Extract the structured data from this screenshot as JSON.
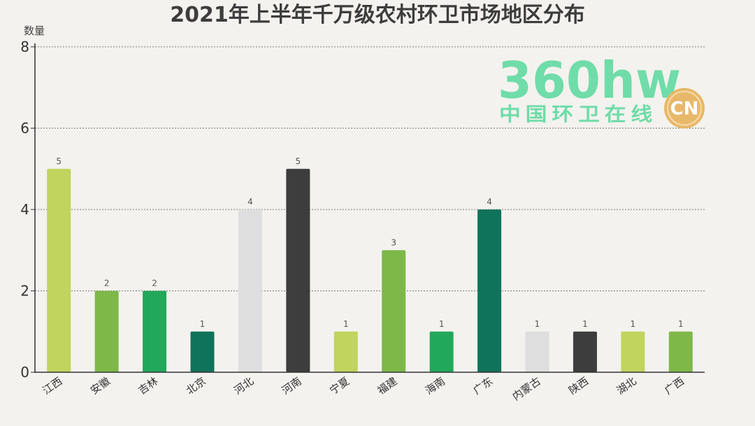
{
  "chart_data": {
    "type": "bar",
    "title": "2021年上半年千万级农村环卫市场地区分布",
    "ylabel": "数量",
    "xlabel": "",
    "ylim": [
      0,
      8
    ],
    "yticks": [
      0,
      2,
      4,
      6,
      8
    ],
    "grid": true,
    "categories": [
      "江西",
      "安徽",
      "吉林",
      "北京",
      "河北",
      "河南",
      "宁夏",
      "福建",
      "海南",
      "广东",
      "内蒙古",
      "陕西",
      "湖北",
      "广西"
    ],
    "values": [
      5,
      2,
      2,
      1,
      4,
      5,
      1,
      3,
      1,
      4,
      1,
      1,
      1,
      1
    ],
    "colors": [
      "#c0d45e",
      "#7db849",
      "#22a85a",
      "#0f735a",
      "#dedede",
      "#3d3d3d",
      "#c0d45e",
      "#7db849",
      "#22a85a",
      "#0f735a",
      "#dedede",
      "#3d3d3d",
      "#c0d45e",
      "#7db849"
    ]
  },
  "watermark": {
    "main": "360hw",
    "sub": "中国环卫在线",
    "badge": "CN",
    "color": "#6fdca9",
    "badge_color": "#e8b86a"
  }
}
